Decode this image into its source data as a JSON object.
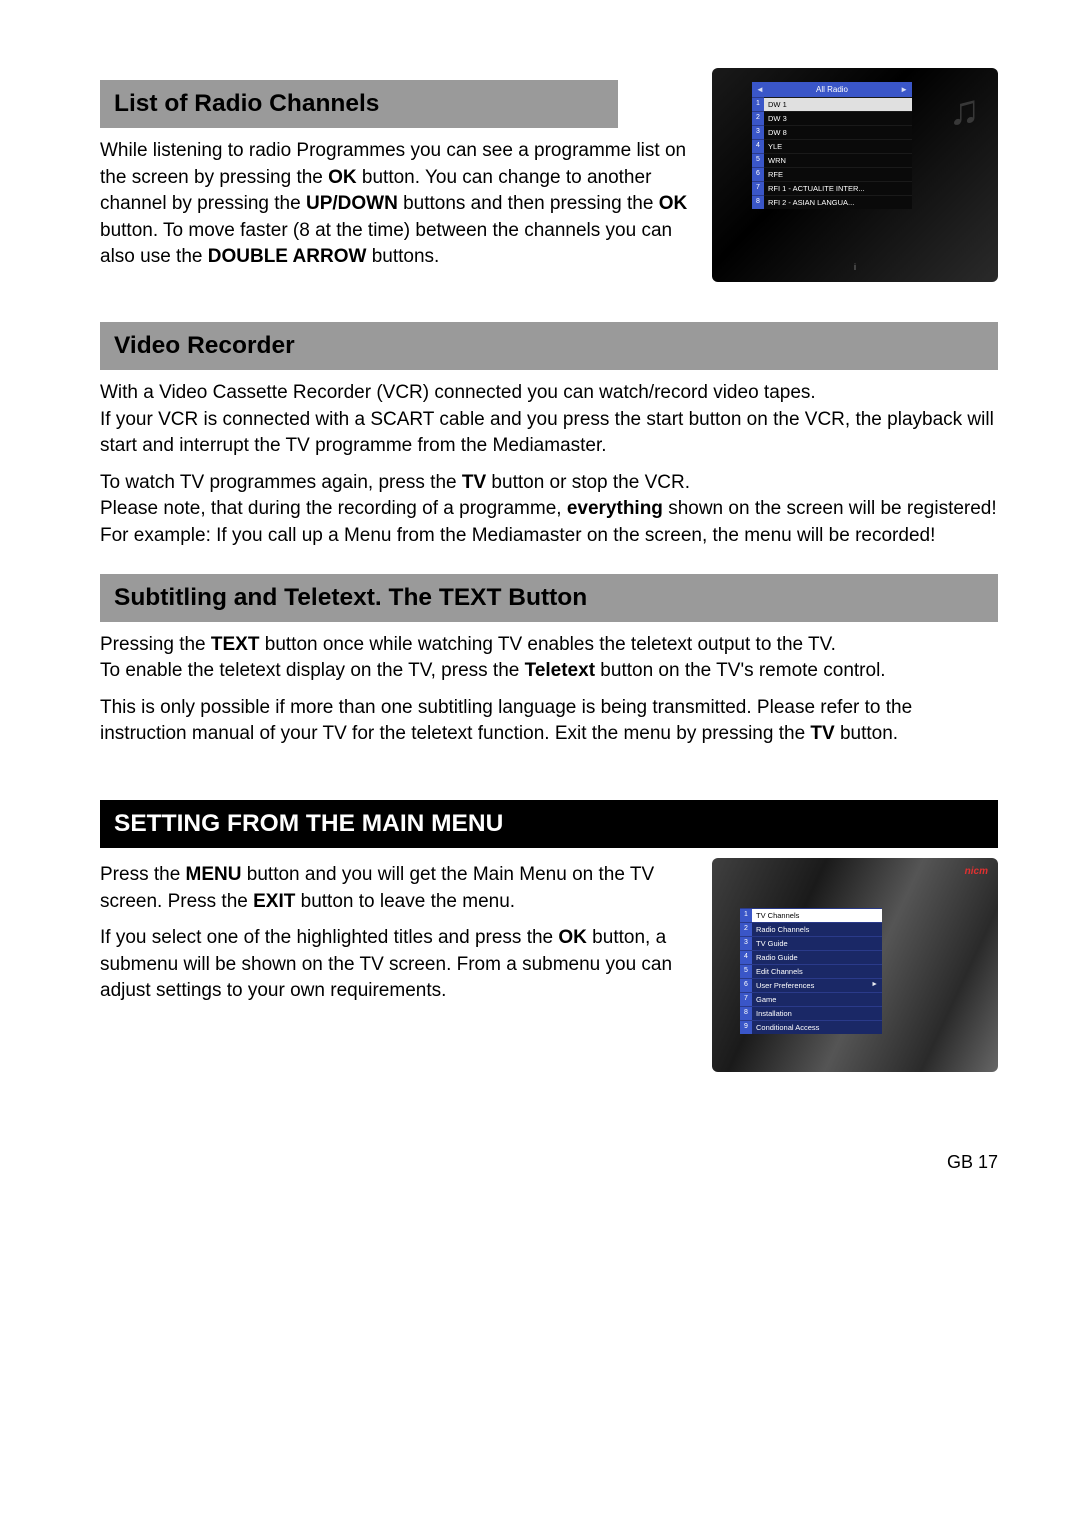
{
  "s1": {
    "title": "List of Radio Channels",
    "body": {
      "t1": "While listening to radio Programmes you can see a programme list on the screen by pressing the ",
      "b1": "OK",
      "t2": " button. You can change to another channel by pressing the ",
      "b2": "UP/DOWN",
      "t3": " buttons and then pressing the ",
      "b3": "OK",
      "t4": " button. To move faster (8 at the time) between the channels you can also use the ",
      "b4": "DOUBLE ARROW",
      "t5": " buttons."
    },
    "screen": {
      "header": "All Radio",
      "rows": [
        {
          "n": "1",
          "label": "DW 1",
          "selected": true
        },
        {
          "n": "2",
          "label": "DW 3",
          "selected": false
        },
        {
          "n": "3",
          "label": "DW 8",
          "selected": false
        },
        {
          "n": "4",
          "label": "YLE",
          "selected": false
        },
        {
          "n": "5",
          "label": "WRN",
          "selected": false
        },
        {
          "n": "6",
          "label": "RFE",
          "selected": false
        },
        {
          "n": "7",
          "label": "RFI 1 - ACTUALITE INTER...",
          "selected": false
        },
        {
          "n": "8",
          "label": "RFI 2 - ASIAN LANGUA...",
          "selected": false
        }
      ],
      "info": "i"
    }
  },
  "s2": {
    "title": "Video Recorder",
    "p1": "With a Video Cassette Recorder (VCR) connected you can watch/record video tapes.",
    "p2": "If your VCR is connected with a SCART cable and you press the start button on the VCR, the playback will start and interrupt the TV programme from the Mediamaster.",
    "p3": {
      "t1": "To watch TV programmes again, press the ",
      "b1": "TV",
      "t2": " button or stop the VCR."
    },
    "p4": {
      "t1": "Please note, that during the recording of a programme, ",
      "b1": "everything",
      "t2": " shown on the screen will be registered! For example:   If you call up a Menu from the Mediamaster on the screen, the menu will be recorded!"
    }
  },
  "s3": {
    "title": "Subtitling and Teletext. The TEXT Button",
    "p1": {
      "t1": "Pressing the ",
      "b1": "TEXT",
      "t2": " button once while watching TV enables the teletext output to the TV."
    },
    "p2": {
      "t1": "To enable the teletext display on the TV, press the ",
      "b1": "Teletext",
      "t2": " button on the TV's remote control."
    },
    "p3": {
      "t1": "This is only possible if more than one subtitling language is being transmitted. Please refer to the instruction manual of your TV for the teletext function. Exit the menu by pressing the ",
      "b1": "TV",
      "t2": " button."
    }
  },
  "s4": {
    "title": "SETTING FROM THE MAIN MENU",
    "p1": {
      "t1": "Press the ",
      "b1": "MENU",
      "t2": " button and you will get the Main Menu on the TV screen. Press the ",
      "b2": "EXIT",
      "t3": " button to leave the menu."
    },
    "p2": {
      "t1": "If you select one of the highlighted titles and press the ",
      "b1": "OK",
      "t2": " button, a submenu will be shown on the TV screen. From a submenu you can adjust settings to your own requirements."
    },
    "screen": {
      "logo": "nicm",
      "rows": [
        {
          "n": "1",
          "label": "TV Channels",
          "plain": true
        },
        {
          "n": "2",
          "label": "Radio Channels",
          "plain": false
        },
        {
          "n": "3",
          "label": "TV Guide",
          "plain": false
        },
        {
          "n": "4",
          "label": "Radio Guide",
          "plain": false
        },
        {
          "n": "5",
          "label": "Edit Channels",
          "plain": false
        },
        {
          "n": "6",
          "label": "User Preferences",
          "plain": false,
          "chev": true
        },
        {
          "n": "7",
          "label": "Game",
          "plain": false
        },
        {
          "n": "8",
          "label": "Installation",
          "plain": false
        },
        {
          "n": "9",
          "label": "Conditional Access",
          "plain": false
        }
      ]
    }
  },
  "pageNumber": "GB 17"
}
